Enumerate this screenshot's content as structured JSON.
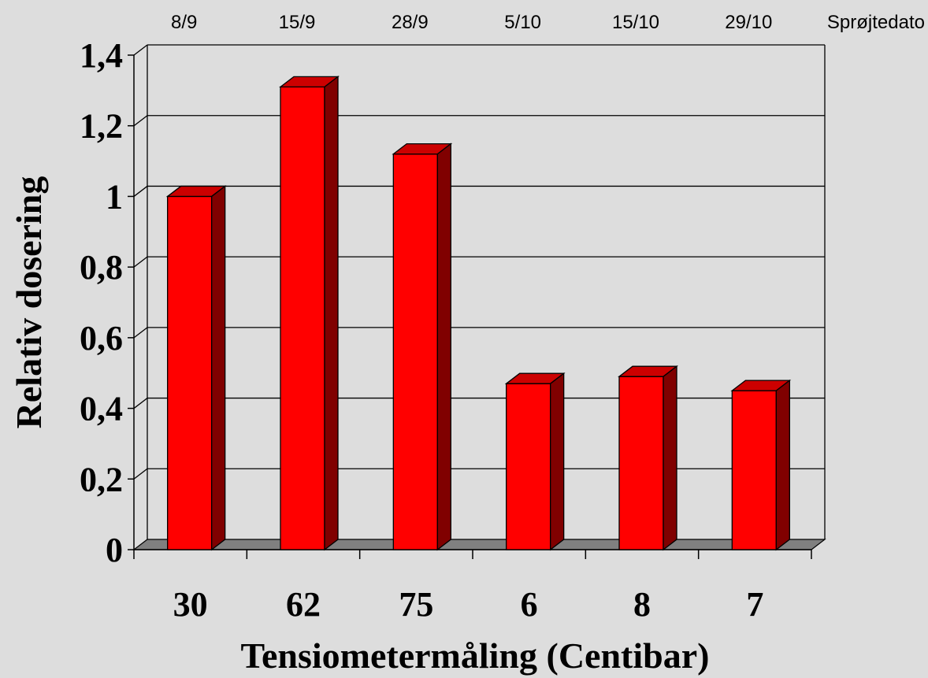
{
  "chart_data": {
    "type": "bar",
    "title": "",
    "xlabel": "Tensiometermåling (Centibar)",
    "ylabel": "Relativ dosering",
    "categories": [
      "30",
      "62",
      "75",
      "6",
      "8",
      "7"
    ],
    "secondary_x_labels": [
      "8/9",
      "15/9",
      "28/9",
      "5/10",
      "15/10",
      "29/10"
    ],
    "secondary_x_title": "Sprøjtedato",
    "values": [
      1.0,
      1.31,
      1.12,
      0.47,
      0.49,
      0.45
    ],
    "yticks": [
      "0",
      "0,2",
      "0,4",
      "0,6",
      "0,8",
      "1",
      "1,2",
      "1,4"
    ],
    "ylim": [
      0,
      1.4
    ],
    "grid": true,
    "legend": "none",
    "style": "3d",
    "colors": {
      "bar_front": "#ff0000",
      "bar_top": "#cc0000",
      "bar_side": "#800000",
      "floor": "#808080",
      "background": "#dddddd",
      "gridline": "#000000"
    }
  }
}
